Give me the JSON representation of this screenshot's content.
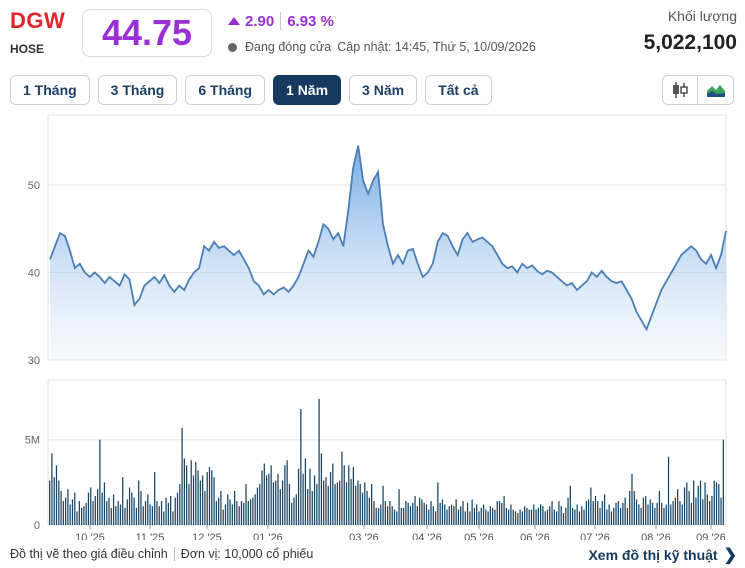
{
  "header": {
    "ticker": "DGW",
    "exchange": "HOSE",
    "price": "44.75",
    "change": "2.90",
    "change_pct": "6.93 %",
    "status": "Đang đóng cửa",
    "updated": "Cập nhật: 14:45, Thứ 5, 10/09/2026",
    "volume_label": "Khối lượng",
    "volume_value": "5,022,100"
  },
  "colors": {
    "accent": "#9b2fd6",
    "ticker": "#e0262b",
    "nav": "#163a5f",
    "line": "#4a7fb5",
    "volume_bar": "#1a4666"
  },
  "tabs": [
    {
      "label": "1 Tháng",
      "active": false
    },
    {
      "label": "3 Tháng",
      "active": false
    },
    {
      "label": "6 Tháng",
      "active": false
    },
    {
      "label": "1 Năm",
      "active": true
    },
    {
      "label": "3 Năm",
      "active": false
    },
    {
      "label": "Tất cả",
      "active": false
    }
  ],
  "chart_controls": {
    "candle": "candlestick-icon",
    "area": "area-chart-icon"
  },
  "footer": {
    "note": "Đồ thị vẽ theo giá điều chỉnh",
    "unit": "Đơn vị: 10,000 cổ phiếu",
    "tech_link": "Xem đồ thị kỹ thuật"
  },
  "chart_data": {
    "type": "area",
    "x_tick_labels": [
      "10 '25",
      "11 '25",
      "12 '25",
      "01 '26",
      "03 '26",
      "04 '26",
      "05 '26",
      "06 '26",
      "07 '26",
      "08 '26",
      "09 '26"
    ],
    "price": {
      "ylim": [
        30,
        58
      ],
      "y_ticks": [
        30,
        40,
        50
      ],
      "values": [
        41.5,
        43,
        44.5,
        44.2,
        42.5,
        40.5,
        41,
        40,
        39.5,
        40,
        39.5,
        38.8,
        39.5,
        39,
        38.5,
        39.8,
        39.2,
        36.3,
        37,
        38.5,
        39,
        39.5,
        38.8,
        39.7,
        38.5,
        37.8,
        38.5,
        38,
        39.2,
        40,
        40.5,
        43,
        42.5,
        43.5,
        42.8,
        43,
        42.5,
        42,
        42.5,
        41.5,
        40.5,
        39,
        38.5,
        37.5,
        38,
        37.5,
        38,
        38.3,
        37.8,
        38.5,
        39.5,
        41,
        42.5,
        41.8,
        43.5,
        45.5,
        45,
        43.8,
        44.5,
        43,
        47,
        52,
        54.5,
        50.5,
        49,
        50.5,
        51.5,
        45.5,
        43,
        41,
        42,
        41,
        42.5,
        42.7,
        41,
        39.5,
        40,
        41,
        43.5,
        44.5,
        44.2,
        43,
        42,
        43.8,
        44.5,
        43.5,
        43.8,
        44,
        43.5,
        43,
        42,
        41,
        40.5,
        40.7,
        40,
        41,
        40.5,
        40.8,
        40.2,
        39.8,
        40.2,
        40,
        39.5,
        39,
        38.5,
        38.8,
        38,
        38.5,
        39,
        40,
        39.5,
        40.2,
        39.5,
        39,
        38.8,
        39,
        38,
        37,
        35.5,
        34.5,
        33.5,
        35,
        36.5,
        38,
        39,
        40,
        41,
        42,
        42.5,
        43,
        42.5,
        41.5,
        41,
        42,
        40.5,
        42,
        44.75
      ]
    },
    "volume": {
      "ylim": [
        0,
        8.5
      ],
      "y_ticks": [
        {
          "value": 0,
          "label": "0"
        },
        {
          "value": 5,
          "label": "5M"
        }
      ],
      "values": [
        2.6,
        4.2,
        2.8,
        3.5,
        2.6,
        2.0,
        1.4,
        1.6,
        2.1,
        1.2,
        1.5,
        1.9,
        0.8,
        1.4,
        1.0,
        1.1,
        1.3,
        1.9,
        2.2,
        1.4,
        1.7,
        2.1,
        5.0,
        1.9,
        2.5,
        1.4,
        1.6,
        1.0,
        1.8,
        1.1,
        1.4,
        1.2,
        2.8,
        1.0,
        1.5,
        2.2,
        1.9,
        1.6,
        1.0,
        2.6,
        2.0,
        1.1,
        1.4,
        1.8,
        1.2,
        1.1,
        3.1,
        1.4,
        1.1,
        1.4,
        0.8,
        1.6,
        1.3,
        1.7,
        0.8,
        1.6,
        1.9,
        2.4,
        5.7,
        3.9,
        3.5,
        2.4,
        3.8,
        2.9,
        3.7,
        3.2,
        2.6,
        2.9,
        2.0,
        3.1,
        3.4,
        3.2,
        2.8,
        1.4,
        1.6,
        2.0,
        0.9,
        1.2,
        1.8,
        1.5,
        1.2,
        2.0,
        1.4,
        1.1,
        1.4,
        1.3,
        2.4,
        1.4,
        1.5,
        1.6,
        1.8,
        2.2,
        2.4,
        3.2,
        3.6,
        2.9,
        3.0,
        3.5,
        2.5,
        2.6,
        3.0,
        2.1,
        2.6,
        3.5,
        3.8,
        2.4,
        1.3,
        1.6,
        1.8,
        3.3,
        6.8,
        3.0,
        3.9,
        2.1,
        3.3,
        2.0,
        2.9,
        2.4,
        7.4,
        4.2,
        2.6,
        2.8,
        2.3,
        3.1,
        3.6,
        2.4,
        2.5,
        2.6,
        4.3,
        3.5,
        2.5,
        3.5,
        2.7,
        3.4,
        2.3,
        2.6,
        2.4,
        1.9,
        2.5,
        2.0,
        1.6,
        2.4,
        1.4,
        1.0,
        1.0,
        1.2,
        2.3,
        1.4,
        1.1,
        1.4,
        1.1,
        0.9,
        0.8,
        2.1,
        1.0,
        1.0,
        1.4,
        1.3,
        1.1,
        1.3,
        1.7,
        1.1,
        1.6,
        1.5,
        1.3,
        1.2,
        0.9,
        1.4,
        1.1,
        0.8,
        2.5,
        1.3,
        1.5,
        1.2,
        0.9,
        1.1,
        1.2,
        1.1,
        1.5,
        0.9,
        1.1,
        1.4,
        0.8,
        1.3,
        0.8,
        1.5,
        1.0,
        1.2,
        0.8,
        1.0,
        1.2,
        0.9,
        0.8,
        1.1,
        1.0,
        0.9,
        1.4,
        1.4,
        1.3,
        1.7,
        1.0,
        0.9,
        1.2,
        0.9,
        0.8,
        0.7,
        0.9,
        0.8,
        1.1,
        1.0,
        0.9,
        0.9,
        1.2,
        0.9,
        1.0,
        1.2,
        1.1,
        0.8,
        0.9,
        1.1,
        1.4,
        0.9,
        0.8,
        1.4,
        1.1,
        0.7,
        1.0,
        1.6,
        2.3,
        1.0,
        0.9,
        1.2,
        0.8,
        1.1,
        0.9,
        1.4,
        1.5,
        2.2,
        1.4,
        1.7,
        1.4,
        1.0,
        1.4,
        1.8,
        0.9,
        1.2,
        0.8,
        1.0,
        1.3,
        1.4,
        1.0,
        1.3,
        1.6,
        1.0,
        2.0,
        3.0,
        2.0,
        1.5,
        1.2,
        1.0,
        1.6,
        1.7,
        1.2,
        1.5,
        1.3,
        1.0,
        1.3,
        2.0,
        1.3,
        1.0,
        1.2,
        4.0,
        1.2,
        1.4,
        1.6,
        2.1,
        1.4,
        1.2,
        2.2,
        2.5,
        2.0,
        1.3,
        2.6,
        1.6,
        2.3,
        2.6,
        1.5,
        2.5,
        1.8,
        1.4,
        1.7,
        2.6,
        2.5,
        2.4,
        1.6,
        5.0
      ]
    }
  }
}
